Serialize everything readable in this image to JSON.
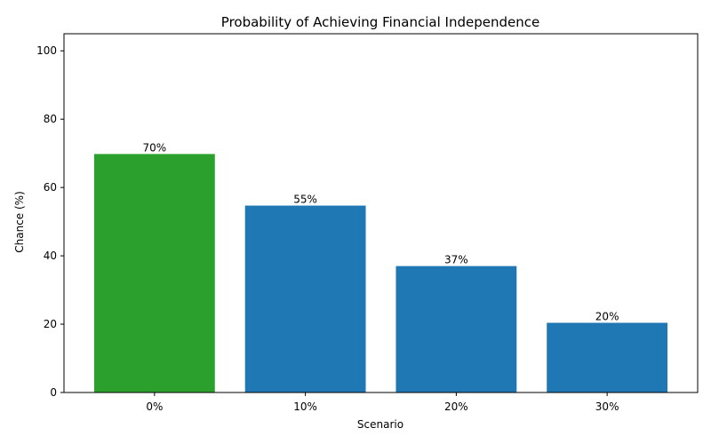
{
  "chart_data": {
    "type": "bar",
    "title": "Probability of Achieving Financial Independence",
    "xlabel": "Scenario",
    "ylabel": "Chance (%)",
    "categories": [
      "0%",
      "10%",
      "20%",
      "30%"
    ],
    "values": [
      69.8,
      54.7,
      37.0,
      20.4
    ],
    "value_labels": [
      "70%",
      "55%",
      "37%",
      "20%"
    ],
    "colors": [
      "#2ca02c",
      "#1f77b4",
      "#1f77b4",
      "#1f77b4"
    ],
    "ylim": [
      0,
      105
    ],
    "yticks": [
      0,
      20,
      40,
      60,
      80,
      100
    ],
    "grid": false,
    "legend": false
  }
}
